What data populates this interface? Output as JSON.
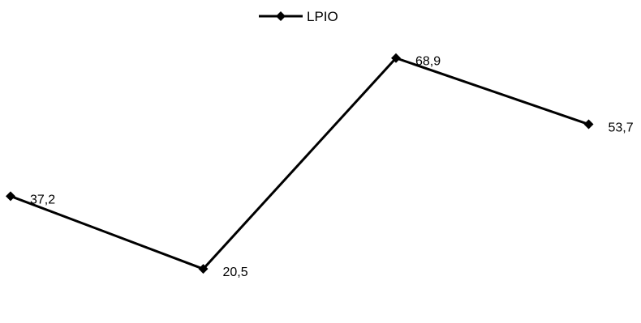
{
  "chart_data": {
    "type": "line",
    "categories": [
      "",
      "",
      "",
      ""
    ],
    "series": [
      {
        "name": "LPIO",
        "values": [
          37.2,
          20.5,
          68.9,
          53.7
        ],
        "labels": [
          "37,2",
          "20,5",
          "68,9",
          "53,7"
        ],
        "color": "#000000",
        "marker": "diamond"
      }
    ],
    "title": "",
    "xlabel": "",
    "ylabel": "",
    "ylim": [
      0,
      80
    ],
    "grid": false,
    "legend": {
      "placement": "top-center"
    }
  }
}
